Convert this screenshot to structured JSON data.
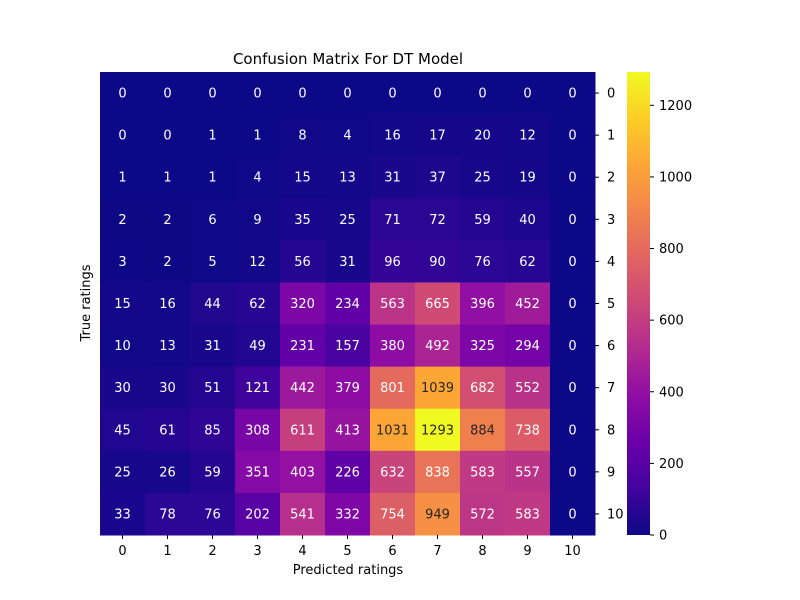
{
  "chart_data": {
    "type": "heatmap",
    "title": "Confusion Matrix For DT Model",
    "xlabel": "Predicted ratings",
    "ylabel": "True ratings",
    "x_categories": [
      "0",
      "1",
      "2",
      "3",
      "4",
      "5",
      "6",
      "7",
      "8",
      "9",
      "10"
    ],
    "y_categories": [
      "0",
      "1",
      "2",
      "3",
      "4",
      "5",
      "6",
      "7",
      "8",
      "9",
      "10"
    ],
    "values": [
      [
        0,
        0,
        0,
        0,
        0,
        0,
        0,
        0,
        0,
        0,
        0
      ],
      [
        0,
        0,
        1,
        1,
        8,
        4,
        16,
        17,
        20,
        12,
        0
      ],
      [
        1,
        1,
        1,
        4,
        15,
        13,
        31,
        37,
        25,
        19,
        0
      ],
      [
        2,
        2,
        6,
        9,
        35,
        25,
        71,
        72,
        59,
        40,
        0
      ],
      [
        3,
        2,
        5,
        12,
        56,
        31,
        96,
        90,
        76,
        62,
        0
      ],
      [
        15,
        16,
        44,
        62,
        320,
        234,
        563,
        665,
        396,
        452,
        0
      ],
      [
        10,
        13,
        31,
        49,
        231,
        157,
        380,
        492,
        325,
        294,
        0
      ],
      [
        30,
        30,
        51,
        121,
        442,
        379,
        801,
        1039,
        682,
        552,
        0
      ],
      [
        45,
        61,
        85,
        308,
        611,
        413,
        1031,
        1293,
        884,
        738,
        0
      ],
      [
        25,
        26,
        59,
        351,
        403,
        226,
        632,
        838,
        583,
        557,
        0
      ],
      [
        33,
        78,
        76,
        202,
        541,
        332,
        754,
        949,
        572,
        583,
        0
      ]
    ],
    "colormap": "plasma",
    "vmin": 0,
    "vmax": 1293,
    "colorbar_ticks": [
      "0",
      "200",
      "400",
      "600",
      "800",
      "1000",
      "1200"
    ],
    "colorbar_tick_values": [
      0,
      200,
      400,
      600,
      800,
      1000,
      1200
    ]
  }
}
